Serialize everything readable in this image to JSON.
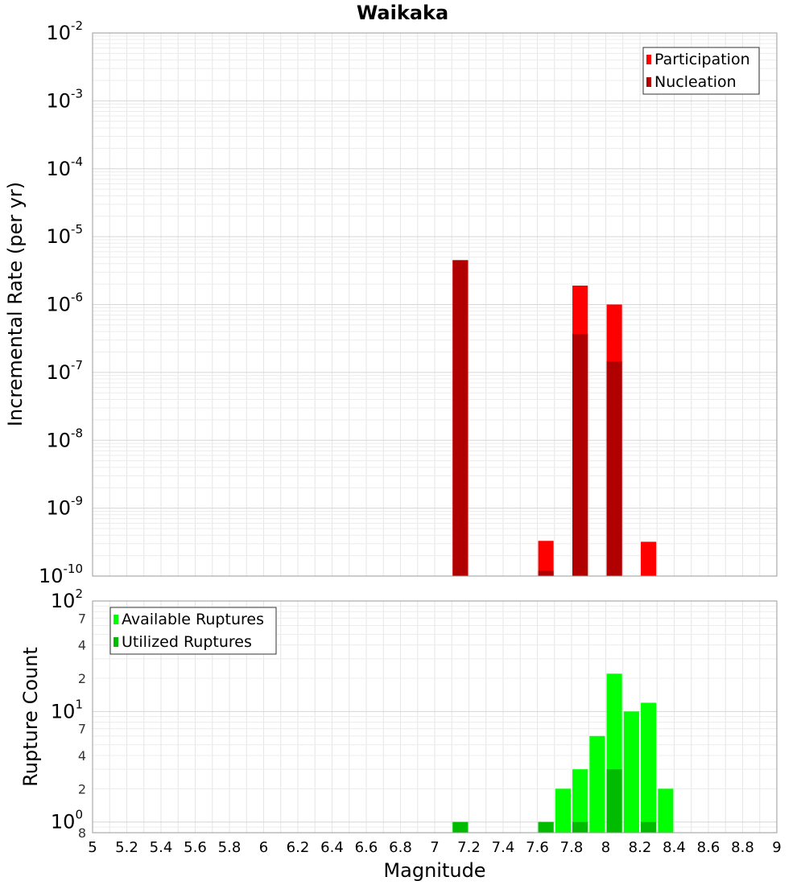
{
  "chart_data": [
    {
      "type": "bar",
      "title": "Waikaka",
      "xlabel": "",
      "ylabel": "Incremental Rate (per yr)",
      "yscale": "log",
      "ylim": [
        1e-10,
        0.01
      ],
      "xlim": [
        5,
        9
      ],
      "grid": true,
      "legend_position": "top-right",
      "series": [
        {
          "name": "Participation",
          "color": "#ff0000",
          "points": [
            {
              "x": 7.15,
              "y": 4.5e-06
            },
            {
              "x": 7.65,
              "y": 3.3e-10
            },
            {
              "x": 7.85,
              "y": 1.9e-06
            },
            {
              "x": 8.05,
              "y": 1e-06
            },
            {
              "x": 8.25,
              "y": 3.2e-10
            }
          ]
        },
        {
          "name": "Nucleation",
          "color": "#b00000",
          "points": [
            {
              "x": 7.15,
              "y": 4.5e-06
            },
            {
              "x": 7.65,
              "y": 1.2e-10
            },
            {
              "x": 7.85,
              "y": 3.7e-07
            },
            {
              "x": 8.05,
              "y": 1.45e-07
            }
          ]
        }
      ],
      "yticks": [
        {
          "base": "10",
          "exp": "-2",
          "value": 0.01
        },
        {
          "base": "10",
          "exp": "-3",
          "value": 0.001
        },
        {
          "base": "10",
          "exp": "-4",
          "value": 0.0001
        },
        {
          "base": "10",
          "exp": "-5",
          "value": 1e-05
        },
        {
          "base": "10",
          "exp": "-6",
          "value": 1e-06
        },
        {
          "base": "10",
          "exp": "-7",
          "value": 1e-07
        },
        {
          "base": "10",
          "exp": "-8",
          "value": 1e-08
        },
        {
          "base": "10",
          "exp": "-9",
          "value": 1e-09
        },
        {
          "base": "10",
          "exp": "-10",
          "value": 1e-10
        }
      ]
    },
    {
      "type": "bar",
      "title": "",
      "xlabel": "Magnitude",
      "ylabel": "Rupture Count",
      "yscale": "log",
      "ylim": [
        0.8,
        100
      ],
      "xlim": [
        5,
        9
      ],
      "grid": true,
      "legend_position": "top-left",
      "series": [
        {
          "name": "Available Ruptures",
          "color": "#00ff00",
          "points": [
            {
              "x": 7.15,
              "y": 1
            },
            {
              "x": 7.65,
              "y": 1
            },
            {
              "x": 7.75,
              "y": 2
            },
            {
              "x": 7.85,
              "y": 3
            },
            {
              "x": 7.95,
              "y": 6
            },
            {
              "x": 8.05,
              "y": 22
            },
            {
              "x": 8.15,
              "y": 10
            },
            {
              "x": 8.25,
              "y": 12
            },
            {
              "x": 8.35,
              "y": 2
            }
          ]
        },
        {
          "name": "Utilized Ruptures",
          "color": "#00bb00",
          "points": [
            {
              "x": 7.15,
              "y": 1
            },
            {
              "x": 7.65,
              "y": 1
            },
            {
              "x": 7.85,
              "y": 1
            },
            {
              "x": 8.05,
              "y": 3
            },
            {
              "x": 8.25,
              "y": 1
            }
          ]
        }
      ],
      "yticks": [
        {
          "base": "10",
          "exp": "2",
          "value": 100
        },
        {
          "base": "10",
          "exp": "1",
          "value": 10
        },
        {
          "base": "10",
          "exp": "0",
          "value": 1
        }
      ],
      "minor_yticks": [
        {
          "label": "7",
          "value": 70
        },
        {
          "label": "4",
          "value": 40
        },
        {
          "label": "2",
          "value": 20
        },
        {
          "label": "7",
          "value": 7
        },
        {
          "label": "4",
          "value": 4
        },
        {
          "label": "2",
          "value": 2
        },
        {
          "label": "8",
          "value": 0.8
        }
      ],
      "xticks": [
        "5",
        "5.2",
        "5.4",
        "5.6",
        "5.8",
        "6",
        "6.2",
        "6.4",
        "6.6",
        "6.8",
        "7",
        "7.2",
        "7.4",
        "7.6",
        "7.8",
        "8",
        "8.2",
        "8.4",
        "8.6",
        "8.8",
        "9"
      ]
    }
  ]
}
